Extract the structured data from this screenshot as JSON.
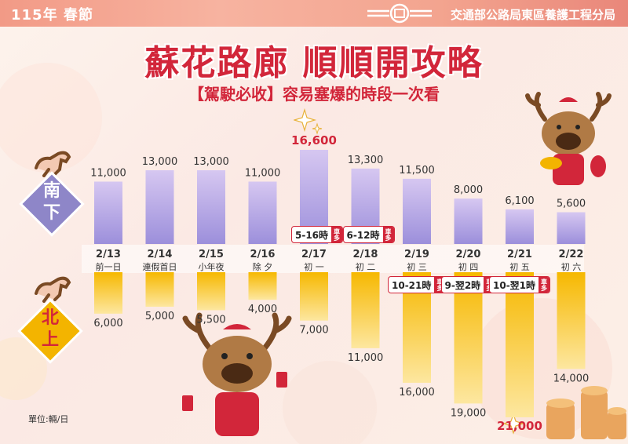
{
  "header": {
    "year_label": "115年 春節",
    "agency": "交通部公路局東區養護工程分局"
  },
  "title": "蘇花路廊 順順開攻略",
  "subtitle": "【駕駛必收】容易塞爆的時段一次看",
  "unit": "單位:輛/日",
  "peak_tag": "車多",
  "colors": {
    "southbound_bar": "#b9a8e4",
    "northbound_bar": "#f7c21a",
    "accent": "#d2263a",
    "south_diamond": "#8e86c8",
    "north_diamond": "#f3b400"
  },
  "chart_data": {
    "type": "bar",
    "categories": [
      "2/13",
      "2/14",
      "2/15",
      "2/16",
      "2/17",
      "2/18",
      "2/19",
      "2/20",
      "2/21",
      "2/22"
    ],
    "category_sublabels": [
      "前一日",
      "連假首日",
      "小年夜",
      "除 夕",
      "初 一",
      "初 二",
      "初 三",
      "初 四",
      "初 五",
      "初 六"
    ],
    "series": [
      {
        "name": "南下",
        "direction": "up",
        "values": [
          11000,
          13000,
          13000,
          11000,
          16600,
          13300,
          11500,
          8000,
          6100,
          5600
        ],
        "labels": [
          "11,000",
          "13,000",
          "13,000",
          "11,000",
          "16,600",
          "13,300",
          "11,500",
          "8,000",
          "6,100",
          "5,600"
        ],
        "peak_times": [
          "",
          "",
          "",
          "",
          "5-16時",
          "6-12時",
          "",
          "",
          "",
          ""
        ]
      },
      {
        "name": "北上",
        "direction": "down",
        "values": [
          6000,
          5000,
          5500,
          4000,
          7000,
          11000,
          16000,
          19000,
          21000,
          14000
        ],
        "labels": [
          "6,000",
          "5,000",
          "5,500",
          "4,000",
          "7,000",
          "11,000",
          "16,000",
          "19,000",
          "21,000",
          "14,000"
        ],
        "peak_times": [
          "",
          "",
          "",
          "",
          "",
          "",
          "10-21時",
          "9-翌2時",
          "10-翌1時",
          ""
        ]
      }
    ],
    "highlight": {
      "南下": 4,
      "北上": 8
    },
    "legend": "left"
  }
}
